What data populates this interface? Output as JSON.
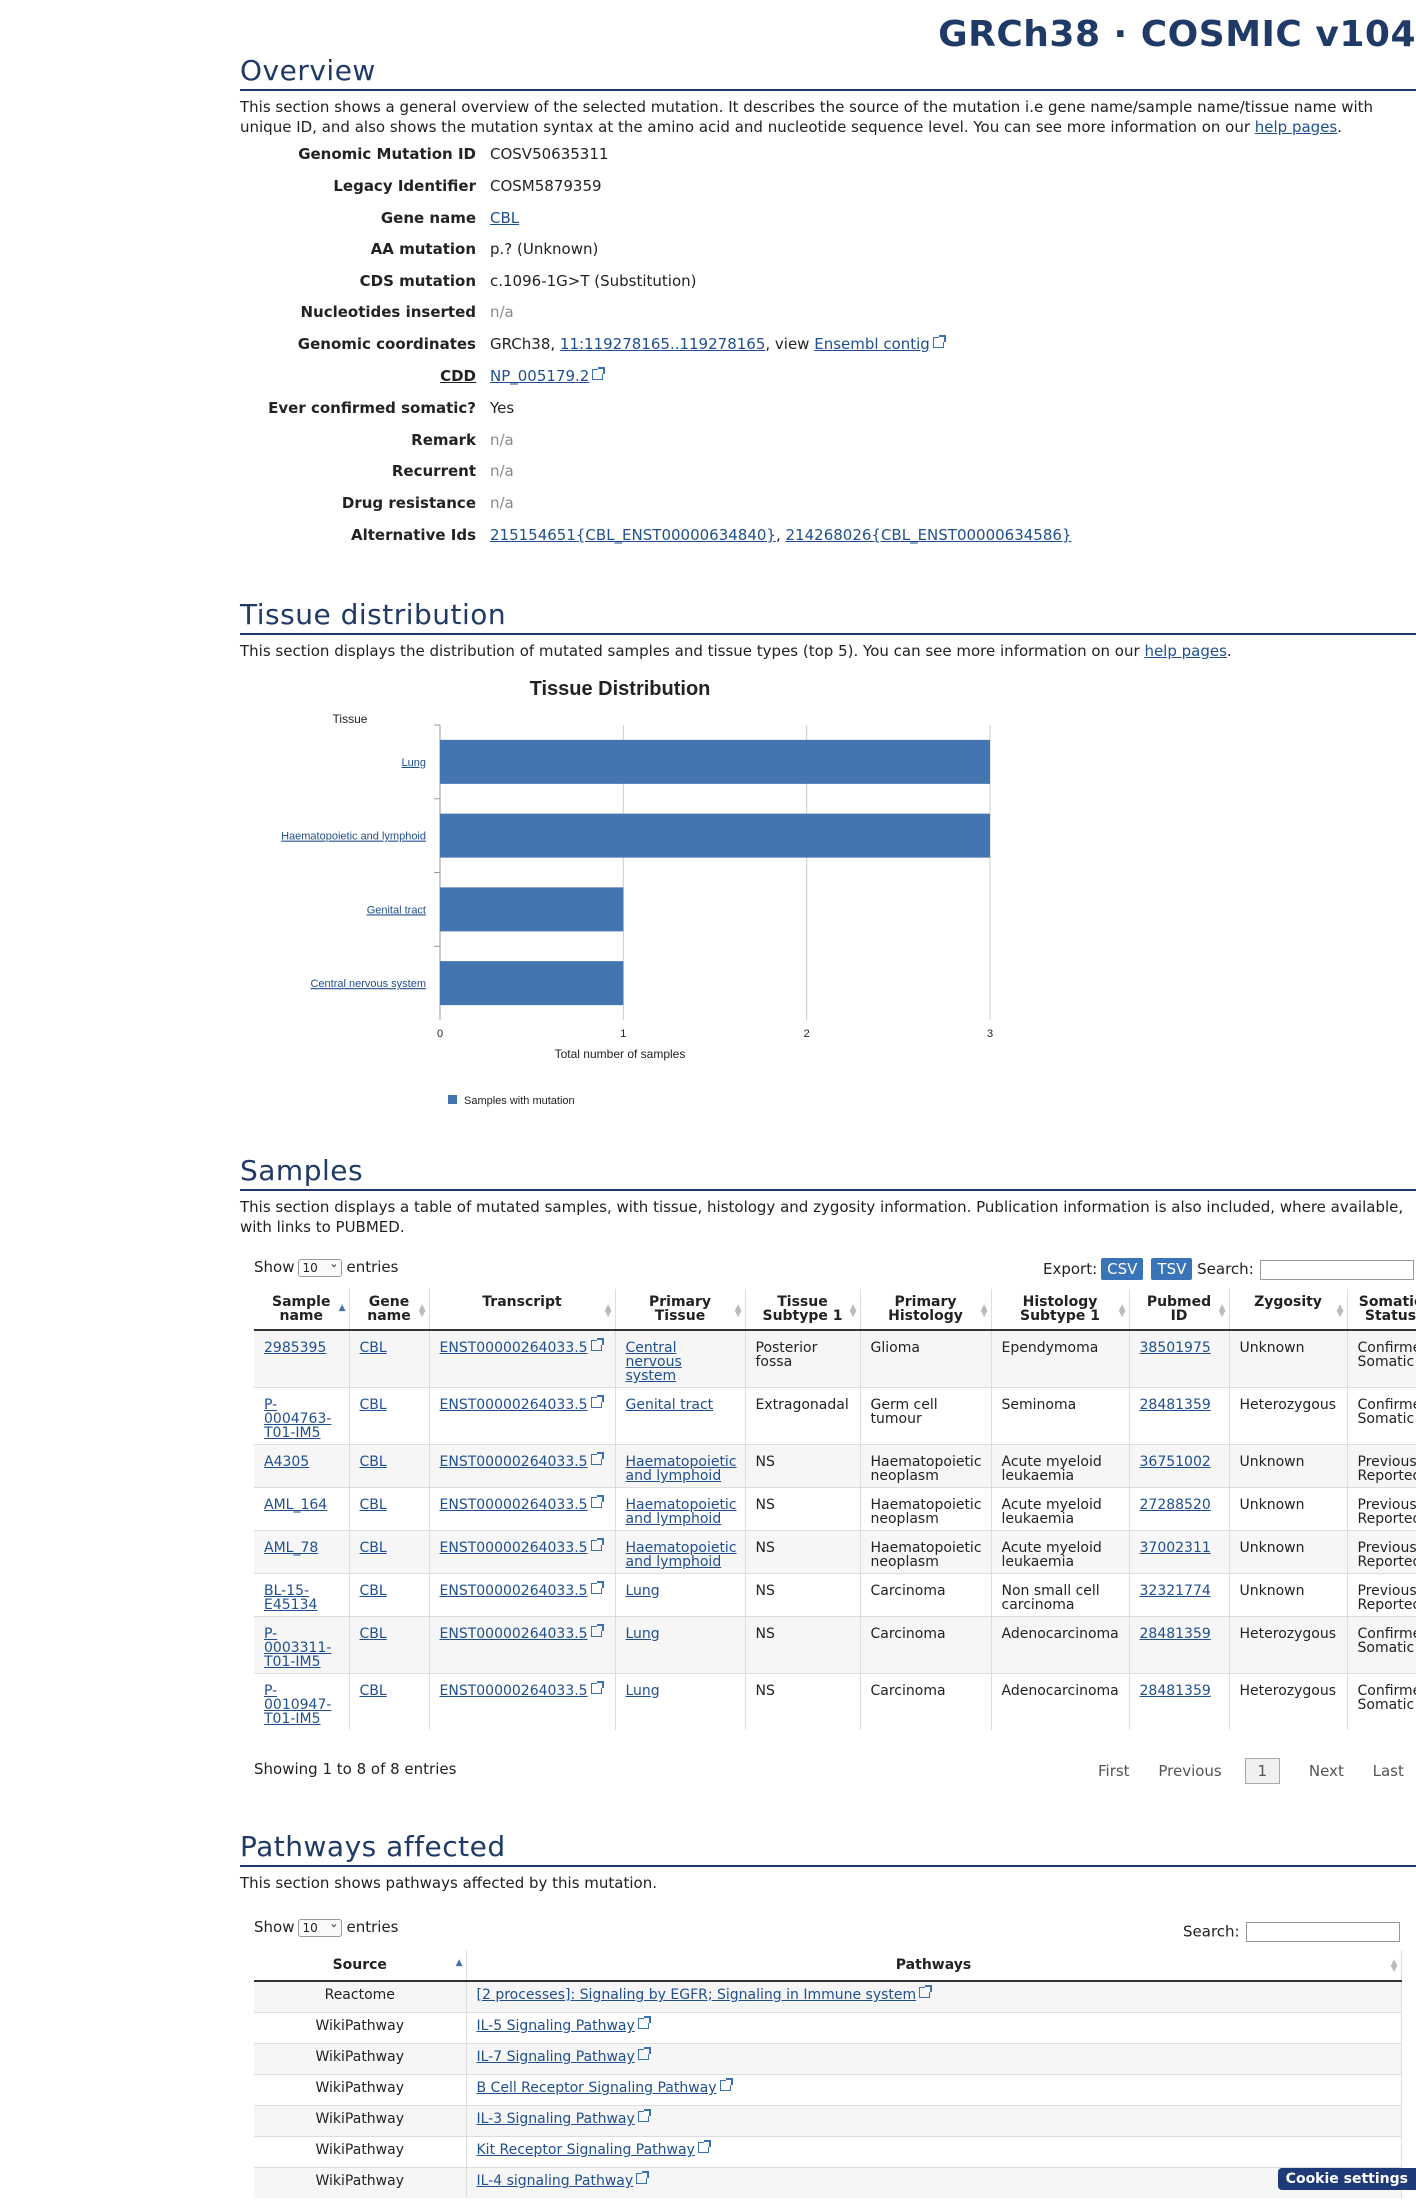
{
  "header": {
    "title": "GRCh38 · COSMIC v104"
  },
  "overview": {
    "title": "Overview",
    "desc_prefix": "This section shows a general overview of the selected mutation. It describes the source of the mutation i.e gene name/sample name/tissue name with unique ID, and also shows the mutation syntax at the amino acid and nucleotide sequence level. You can see more information on our ",
    "desc_link": "help pages",
    "desc_suffix": ".",
    "rows": {
      "genomic_id_label": "Genomic Mutation ID",
      "genomic_id": "COSV50635311",
      "legacy_label": "Legacy Identifier",
      "legacy": "COSM5879359",
      "gene_label": "Gene name",
      "gene": "CBL",
      "aa_label": "AA mutation",
      "aa": "p.? (Unknown)",
      "cds_label": "CDS mutation",
      "cds": "c.1096-1G>T (Substitution)",
      "nuc_label": "Nucleotides inserted",
      "nuc": "n/a",
      "coords_label": "Genomic coordinates",
      "coords_prefix": "GRCh38, ",
      "coords_link": "11:119278165..119278165",
      "coords_mid": ", view ",
      "coords_link2": "Ensembl contig",
      "cdd_label": "CDD",
      "cdd": "NP_005179.2",
      "somatic_label": "Ever confirmed somatic?",
      "somatic": "Yes",
      "remark_label": "Remark",
      "remark": "n/a",
      "recurrent_label": "Recurrent",
      "recurrent": "n/a",
      "drug_label": "Drug resistance",
      "drug": "n/a",
      "alt_label": "Alternative Ids",
      "alt1": "215154651{CBL_ENST00000634840}",
      "alt_sep": ", ",
      "alt2": "214268026{CBL_ENST00000634586}"
    }
  },
  "tissue": {
    "title": "Tissue distribution",
    "desc_prefix": "This section displays the distribution of mutated samples and tissue types (top 5). You can see more information on our ",
    "desc_link": "help pages",
    "desc_suffix": "."
  },
  "chart_data": {
    "type": "bar",
    "orientation": "horizontal",
    "title": "Tissue Distribution",
    "ylabel": "Tissue",
    "xlabel": "Total number of samples",
    "categories": [
      "Lung",
      "Haematopoietic and lymphoid",
      "Genital tract",
      "Central nervous system"
    ],
    "series": [
      {
        "name": "Samples with mutation",
        "values": [
          3,
          3,
          1,
          1
        ]
      }
    ],
    "xlim": [
      0,
      3
    ],
    "xticks": [
      "0",
      "1",
      "2",
      "3"
    ],
    "grid": true,
    "legend": "bottom-left",
    "bar_color": "#4575b0"
  },
  "samples": {
    "title": "Samples",
    "desc": "This section displays a table of mutated samples, with tissue, histology and zygosity information. Publication information is also included, where available, with links to PUBMED.",
    "show_label": "Show",
    "show_value": "10",
    "entries_label": "entries",
    "export_label": "Export:",
    "csv": "CSV",
    "tsv": "TSV",
    "search_label": "Search:",
    "columns": [
      "Sample name",
      "Gene name",
      "Transcript",
      "Primary Tissue",
      "Tissue Subtype 1",
      "Primary Histology",
      "Histology Subtype 1",
      "Pubmed ID",
      "Zygosity",
      "Somatic Status"
    ],
    "rows": [
      [
        "2985395",
        "CBL",
        "ENST00000264033.5",
        "Central nervous system",
        "Posterior fossa",
        "Glioma",
        "Ependymoma",
        "38501975",
        "Unknown",
        "Confirmed Somatic"
      ],
      [
        "P-0004763-T01-IM5",
        "CBL",
        "ENST00000264033.5",
        "Genital tract",
        "Extragonadal",
        "Germ cell tumour",
        "Seminoma",
        "28481359",
        "Heterozygous",
        "Confirmed Somatic"
      ],
      [
        "A4305",
        "CBL",
        "ENST00000264033.5",
        "Haematopoietic and lymphoid",
        "NS",
        "Haematopoietic neoplasm",
        "Acute myeloid leukaemia",
        "36751002",
        "Unknown",
        "Previously Reported"
      ],
      [
        "AML_164",
        "CBL",
        "ENST00000264033.5",
        "Haematopoietic and lymphoid",
        "NS",
        "Haematopoietic neoplasm",
        "Acute myeloid leukaemia",
        "27288520",
        "Unknown",
        "Previously Reported"
      ],
      [
        "AML_78",
        "CBL",
        "ENST00000264033.5",
        "Haematopoietic and lymphoid",
        "NS",
        "Haematopoietic neoplasm",
        "Acute myeloid leukaemia",
        "37002311",
        "Unknown",
        "Previously Reported"
      ],
      [
        "BL-15-E45134",
        "CBL",
        "ENST00000264033.5",
        "Lung",
        "NS",
        "Carcinoma",
        "Non small cell carcinoma",
        "32321774",
        "Unknown",
        "Previously Reported"
      ],
      [
        "P-0003311-T01-IM5",
        "CBL",
        "ENST00000264033.5",
        "Lung",
        "NS",
        "Carcinoma",
        "Adenocarcinoma",
        "28481359",
        "Heterozygous",
        "Confirmed Somatic"
      ],
      [
        "P-0010947-T01-IM5",
        "CBL",
        "ENST00000264033.5",
        "Lung",
        "NS",
        "Carcinoma",
        "Adenocarcinoma",
        "28481359",
        "Heterozygous",
        "Confirmed Somatic"
      ]
    ],
    "info": "Showing 1 to 8 of 8 entries",
    "pager": {
      "first": "First",
      "previous": "Previous",
      "current": "1",
      "next": "Next",
      "last": "Last"
    }
  },
  "pathways": {
    "title": "Pathways affected",
    "desc": "This section shows pathways affected by this mutation.",
    "show_label": "Show",
    "show_value": "10",
    "entries_label": "entries",
    "search_label": "Search:",
    "columns": [
      "Source",
      "Pathways"
    ],
    "rows": [
      [
        "Reactome",
        "[2 processes]: Signaling by EGFR; Signaling in Immune system"
      ],
      [
        "WikiPathway",
        "IL-5 Signaling Pathway"
      ],
      [
        "WikiPathway",
        "IL-7 Signaling Pathway"
      ],
      [
        "WikiPathway",
        "B Cell Receptor Signaling Pathway"
      ],
      [
        "WikiPathway",
        "IL-3 Signaling Pathway"
      ],
      [
        "WikiPathway",
        "Kit Receptor Signaling Pathway"
      ],
      [
        "WikiPathway",
        "IL-4 signaling Pathway"
      ]
    ]
  },
  "cookie": {
    "label": "Cookie settings"
  }
}
